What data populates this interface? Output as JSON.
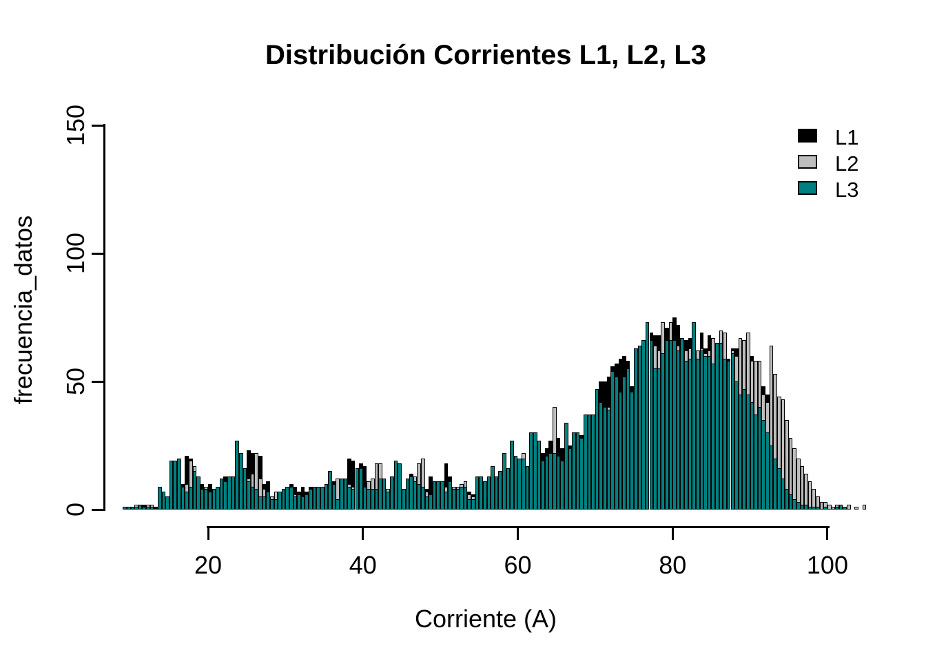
{
  "title": "Distribución Corrientes L1, L2, L3",
  "x_axis": {
    "label": "Corriente (A)",
    "ticks": [
      20,
      40,
      60,
      80,
      100
    ]
  },
  "y_axis": {
    "label": "frecuencia_datos",
    "ticks": [
      0,
      50,
      100,
      150
    ]
  },
  "legend": {
    "items": [
      {
        "label": "L1",
        "color": "#000000"
      },
      {
        "label": "L2",
        "color": "#BEBEBE"
      },
      {
        "label": "L3",
        "color": "#008080"
      }
    ]
  },
  "chart_data": {
    "type": "bar",
    "subtype": "overlaid-histogram",
    "title": "Distribución Corrientes L1, L2, L3",
    "xlabel": "Corriente (A)",
    "ylabel": "frecuencia_datos",
    "xlim": [
      20,
      100
    ],
    "ylim": [
      0,
      150
    ],
    "grid": false,
    "legend_position": "top-right",
    "bin_start": 9.0,
    "bin_width": 0.5,
    "draw_order": [
      "L1",
      "L2",
      "L3"
    ],
    "series": [
      {
        "name": "L1",
        "color": "#000000",
        "values": [
          1,
          1,
          1,
          1,
          2,
          2,
          2,
          2,
          1,
          3,
          3,
          4,
          8,
          10,
          9,
          10,
          21,
          20,
          14,
          10,
          10,
          9,
          10,
          8,
          9,
          12,
          13,
          11,
          10,
          12,
          13,
          12,
          23,
          22,
          22,
          21,
          10,
          11,
          5,
          4,
          6,
          7,
          9,
          10,
          9,
          7,
          9,
          7,
          9,
          8,
          8,
          9,
          9,
          10,
          11,
          8,
          9,
          10,
          20,
          19,
          12,
          18,
          17,
          11,
          9,
          10,
          9,
          10,
          8,
          9,
          10,
          9,
          8,
          9,
          14,
          10,
          11,
          12,
          8,
          13,
          9,
          10,
          11,
          18,
          13,
          9,
          8,
          9,
          10,
          7,
          6,
          10,
          11,
          10,
          12,
          14,
          12,
          15,
          22,
          14,
          24,
          18,
          17,
          18,
          16,
          25,
          24,
          22,
          22,
          24,
          27,
          24,
          28,
          24,
          26,
          25,
          27,
          28,
          29,
          31,
          33,
          34,
          38,
          50,
          50,
          52,
          56,
          57,
          59,
          60,
          58,
          48,
          60,
          62,
          65,
          66,
          69,
          68,
          68,
          70,
          71,
          68,
          75,
          72,
          66,
          66,
          67,
          68,
          62,
          69,
          63,
          68,
          64,
          62,
          63,
          61,
          59,
          63,
          63,
          62,
          60,
          58,
          60,
          55,
          52,
          48,
          45,
          40,
          36,
          30,
          26,
          22,
          16,
          12,
          9,
          6,
          4,
          3,
          2,
          1,
          1,
          1,
          0,
          1,
          0,
          1,
          0,
          1,
          0,
          0,
          0,
          1
        ]
      },
      {
        "name": "L2",
        "color": "#BEBEBE",
        "values": [
          0,
          1,
          1,
          2,
          1,
          1,
          2,
          2,
          0,
          2,
          2,
          3,
          7,
          8,
          8,
          8,
          10,
          19,
          17,
          9,
          7,
          9,
          6,
          7,
          8,
          9,
          10,
          9,
          8,
          10,
          9,
          10,
          12,
          14,
          22,
          12,
          8,
          6,
          5,
          7,
          5,
          5,
          6,
          7,
          6,
          5,
          5,
          6,
          6,
          7,
          9,
          8,
          8,
          9,
          9,
          12,
          8,
          9,
          10,
          9,
          9,
          10,
          9,
          11,
          12,
          18,
          18,
          9,
          8,
          7,
          9,
          8,
          7,
          8,
          9,
          13,
          18,
          20,
          7,
          6,
          8,
          9,
          8,
          9,
          8,
          9,
          9,
          10,
          11,
          6,
          5,
          8,
          9,
          9,
          10,
          12,
          11,
          12,
          14,
          13,
          15,
          14,
          15,
          22,
          14,
          16,
          17,
          16,
          15,
          17,
          18,
          40,
          20,
          19,
          21,
          20,
          22,
          23,
          24,
          26,
          28,
          30,
          33,
          36,
          38,
          40,
          42,
          44,
          45,
          46,
          48,
          44,
          52,
          54,
          56,
          58,
          60,
          64,
          62,
          73,
          64,
          73,
          66,
          64,
          60,
          62,
          63,
          64,
          62,
          63,
          61,
          62,
          67,
          61,
          70,
          69,
          58,
          62,
          60,
          67,
          66,
          69,
          58,
          58,
          58,
          45,
          42,
          64,
          53,
          44,
          43,
          35,
          28,
          24,
          20,
          17,
          14,
          11,
          8,
          5,
          3,
          3,
          2,
          1,
          2,
          0,
          1,
          2,
          0,
          1,
          0,
          2
        ]
      },
      {
        "name": "L3",
        "color": "#008080",
        "values": [
          1,
          1,
          1,
          1,
          2,
          1,
          1,
          1,
          0,
          9,
          7,
          5,
          19,
          19,
          20,
          9,
          7,
          9,
          15,
          13,
          8,
          8,
          7,
          8,
          9,
          12,
          11,
          13,
          13,
          27,
          22,
          16,
          11,
          9,
          8,
          5,
          5,
          7,
          4,
          4,
          7,
          8,
          9,
          9,
          5,
          6,
          5,
          6,
          8,
          9,
          9,
          9,
          10,
          15,
          10,
          4,
          12,
          12,
          9,
          8,
          16,
          16,
          9,
          8,
          8,
          8,
          12,
          12,
          7,
          13,
          19,
          18,
          8,
          12,
          13,
          11,
          10,
          9,
          5,
          6,
          11,
          11,
          11,
          7,
          11,
          8,
          8,
          9,
          9,
          4,
          4,
          13,
          13,
          11,
          13,
          17,
          13,
          15,
          22,
          16,
          27,
          21,
          20,
          20,
          17,
          30,
          30,
          27,
          19,
          21,
          22,
          22,
          21,
          19,
          34,
          24,
          30,
          30,
          28,
          37,
          37,
          37,
          47,
          42,
          40,
          39,
          54,
          52,
          46,
          52,
          55,
          46,
          63,
          64,
          66,
          73,
          66,
          55,
          55,
          61,
          66,
          66,
          66,
          62,
          67,
          58,
          59,
          73,
          59,
          62,
          60,
          60,
          57,
          65,
          65,
          59,
          58,
          61,
          50,
          45,
          47,
          45,
          42,
          37,
          40,
          35,
          30,
          25,
          20,
          16,
          12,
          8,
          6,
          4,
          3,
          2,
          2,
          1,
          1,
          1,
          0,
          1,
          0,
          0,
          1,
          2,
          1,
          0,
          0,
          0,
          0,
          0
        ]
      }
    ]
  }
}
